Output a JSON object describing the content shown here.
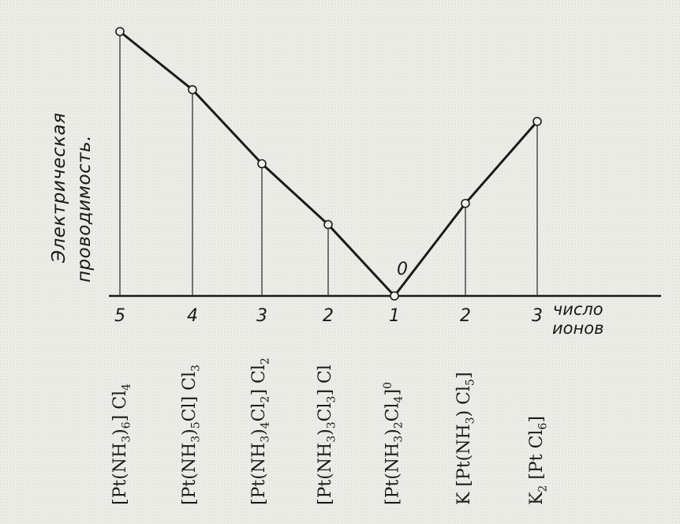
{
  "chart_data": {
    "type": "line",
    "ylabel": [
      "Электрическая",
      "проводимость."
    ],
    "xlabel": [
      "число",
      "ионов"
    ],
    "points": [
      {
        "ions": "5",
        "y": 100,
        "formula": "[Pt(NH3)6]Cl4"
      },
      {
        "ions": "4",
        "y": 78,
        "formula": "[Pt(NH3)5Cl]Cl3"
      },
      {
        "ions": "3",
        "y": 50,
        "formula": "[Pt(NH3)4Cl2]Cl2"
      },
      {
        "ions": "2",
        "y": 27,
        "formula": "[Pt(NH3)3Cl3]Cl"
      },
      {
        "ions": "1",
        "y": 0,
        "formula": "[Pt(NH3)2Cl4]0"
      },
      {
        "ions": "2",
        "y": 35,
        "formula": "K[Pt(NH3)Cl5]"
      },
      {
        "ions": "3",
        "y": 66,
        "formula": "K2[PtCl6]"
      }
    ],
    "zero_label": "0",
    "ylim": [
      0,
      100
    ]
  },
  "formulas": [
    {
      "parts": [
        [
          "t",
          "[Pt(NH"
        ],
        [
          "sub",
          "3"
        ],
        [
          "t",
          ")"
        ],
        [
          "sub",
          "6"
        ],
        [
          "t",
          "] Cl"
        ],
        [
          "sub",
          "4"
        ]
      ]
    },
    {
      "parts": [
        [
          "t",
          "[Pt(NH"
        ],
        [
          "sub",
          "3"
        ],
        [
          "t",
          ")"
        ],
        [
          "sub",
          "5"
        ],
        [
          "t",
          "Cl] Cl"
        ],
        [
          "sub",
          "3"
        ]
      ]
    },
    {
      "parts": [
        [
          "t",
          "[Pt(NH"
        ],
        [
          "sub",
          "3"
        ],
        [
          "t",
          ")"
        ],
        [
          "sub",
          "4"
        ],
        [
          "t",
          "Cl"
        ],
        [
          "sub",
          "2"
        ],
        [
          "t",
          "] Cl"
        ],
        [
          "sub",
          "2"
        ]
      ]
    },
    {
      "parts": [
        [
          "t",
          "[Pt(NH"
        ],
        [
          "sub",
          "3"
        ],
        [
          "t",
          ")"
        ],
        [
          "sub",
          "3"
        ],
        [
          "t",
          "Cl"
        ],
        [
          "sub",
          "3"
        ],
        [
          "t",
          "] Cl"
        ]
      ]
    },
    {
      "parts": [
        [
          "t",
          "[Pt(NH"
        ],
        [
          "sub",
          "3"
        ],
        [
          "t",
          ")"
        ],
        [
          "sub",
          "2"
        ],
        [
          "t",
          "Cl"
        ],
        [
          "sub",
          "4"
        ],
        [
          "t",
          "]"
        ],
        [
          "sup",
          "0"
        ]
      ]
    },
    {
      "parts": [
        [
          "t",
          "K [Pt(NH"
        ],
        [
          "sub",
          "3"
        ],
        [
          "t",
          ") Cl"
        ],
        [
          "sub",
          "5"
        ],
        [
          "t",
          "]"
        ]
      ]
    },
    {
      "parts": [
        [
          "t",
          "K"
        ],
        [
          "sub",
          "2"
        ],
        [
          "t",
          " [Pt Cl"
        ],
        [
          "sub",
          "6"
        ],
        [
          "t",
          "]"
        ]
      ]
    }
  ]
}
